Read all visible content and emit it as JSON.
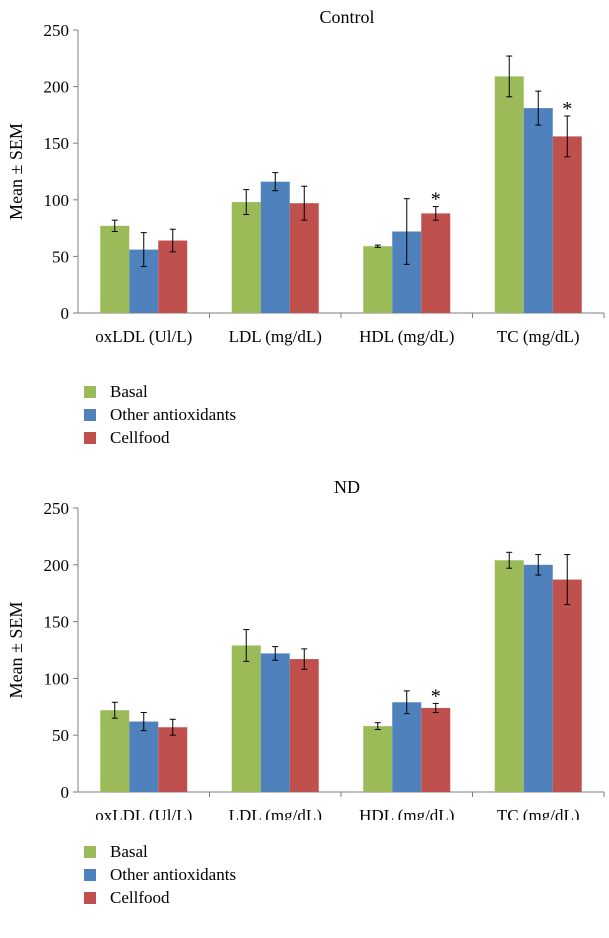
{
  "chart_data": [
    {
      "type": "bar",
      "title": "Control",
      "ylabel": "Mean ± SEM",
      "xlabel": "",
      "ylim": [
        0,
        250
      ],
      "yticks": [
        0,
        50,
        100,
        150,
        200,
        250
      ],
      "categories": [
        "oxLDL (Ul/L)",
        "LDL (mg/dL)",
        "HDL (mg/dL)",
        "TC (mg/dL)"
      ],
      "series": [
        {
          "name": "Basal",
          "color": "#9BBB59",
          "values": [
            77,
            98,
            59,
            209
          ],
          "errors": [
            5,
            11,
            1,
            18
          ]
        },
        {
          "name": "Other antioxidants",
          "color": "#4F81BD",
          "values": [
            56,
            116,
            72,
            181
          ],
          "errors": [
            15,
            8,
            29,
            15
          ]
        },
        {
          "name": "Cellfood",
          "color": "#C0504D",
          "values": [
            64,
            97,
            88,
            156
          ],
          "errors": [
            10,
            15,
            6,
            18
          ]
        }
      ],
      "annotations": [
        {
          "text": "*",
          "category": "HDL (mg/dL)",
          "series": "Cellfood"
        },
        {
          "text": "*",
          "category": "TC (mg/dL)",
          "series": "Cellfood"
        }
      ],
      "legend": "bottom-left",
      "grid": false
    },
    {
      "type": "bar",
      "title": "ND",
      "ylabel": "Mean ± SEM",
      "xlabel": "",
      "ylim": [
        0,
        250
      ],
      "yticks": [
        0,
        50,
        100,
        150,
        200,
        250
      ],
      "categories": [
        "oxLDL (Ul/L)",
        "LDL (mg/dL)",
        "HDL (mg/dL)",
        "TC (mg/dL)"
      ],
      "series": [
        {
          "name": "Basal",
          "color": "#9BBB59",
          "values": [
            72,
            129,
            58,
            204
          ],
          "errors": [
            7,
            14,
            3,
            7
          ]
        },
        {
          "name": "Other antioxidants",
          "color": "#4F81BD",
          "values": [
            62,
            122,
            79,
            200
          ],
          "errors": [
            8,
            6,
            10,
            9
          ]
        },
        {
          "name": "Cellfood",
          "color": "#C0504D",
          "values": [
            57,
            117,
            74,
            187
          ],
          "errors": [
            7,
            9,
            4,
            22
          ]
        }
      ],
      "annotations": [
        {
          "text": "*",
          "category": "HDL (mg/dL)",
          "series": "Cellfood"
        }
      ],
      "legend": "bottom-left",
      "grid": false
    }
  ]
}
